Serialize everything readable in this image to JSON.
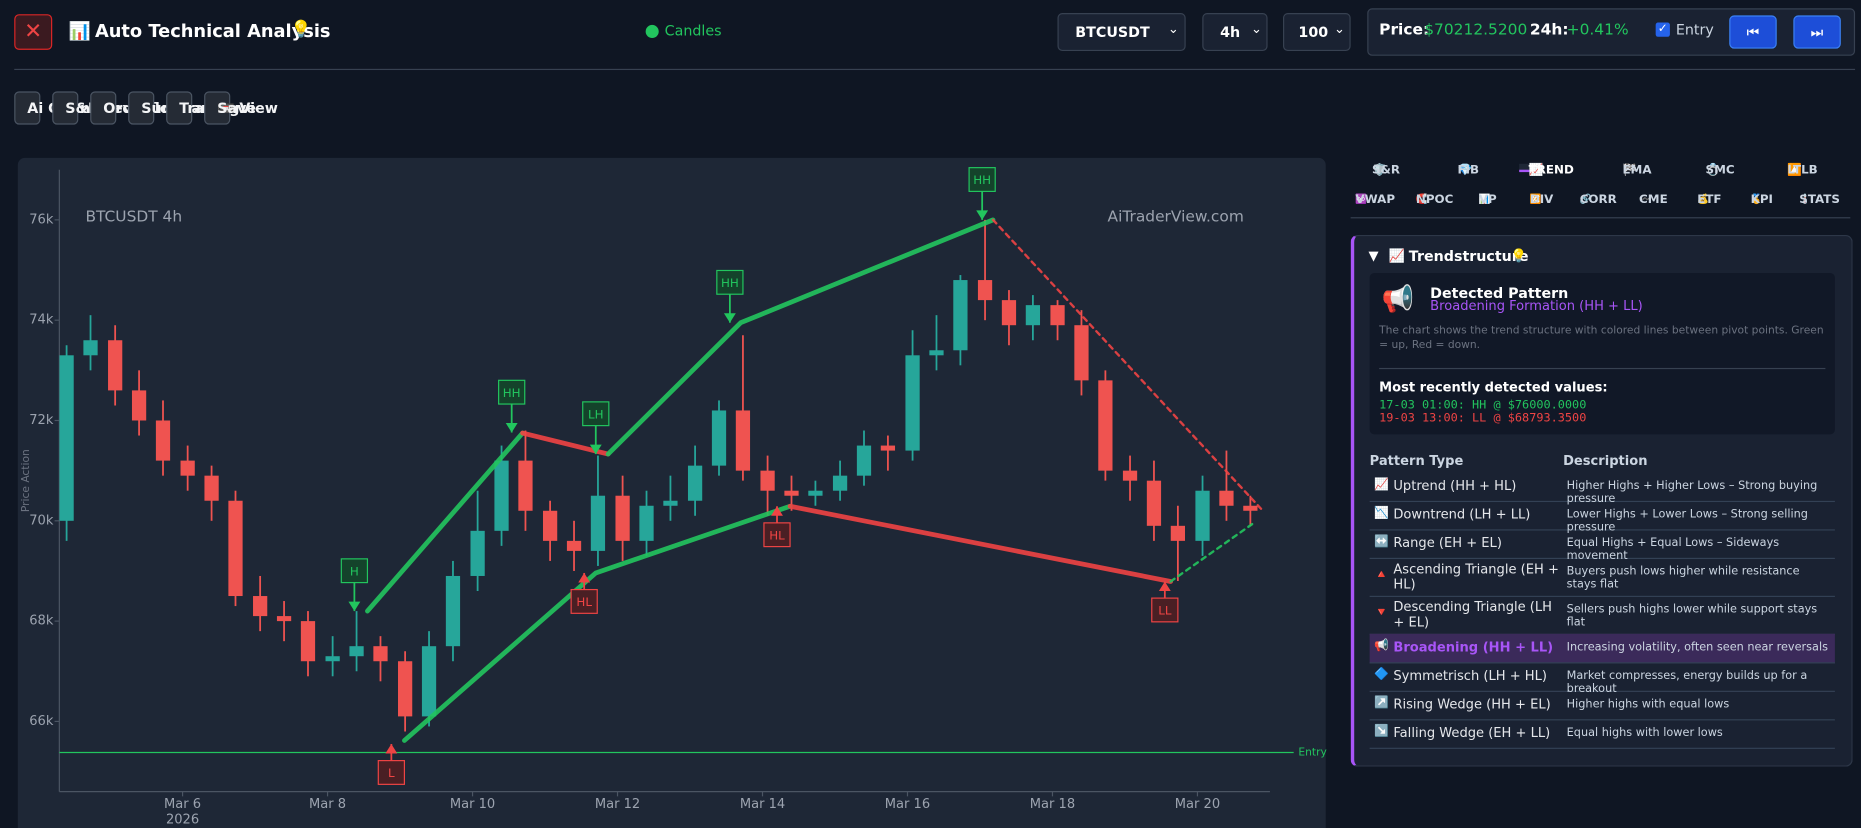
{
  "header": {
    "title_icon": "📊",
    "title": "Auto Technical Analysis",
    "title_hint": "💡",
    "close": "✕",
    "status": "Candles",
    "symbol": "BTCUSDT",
    "interval": "4h",
    "limit": "100",
    "price_label": "Price:",
    "price": "$70212.5200",
    "change_label": "24h:",
    "change": "+0.41%",
    "entry_label": "Entry",
    "prev": "⏮",
    "next": "⏭"
  },
  "toolbar": [
    {
      "label": "Ai Quant"
    },
    {
      "label": "S&R Levels"
    },
    {
      "label": "Orderflow"
    },
    {
      "label": "Summary"
    },
    {
      "label": "TradingView"
    },
    {
      "icon": "📼",
      "label": "Save"
    }
  ],
  "chart_data": {
    "type": "candlestick",
    "title": "BTCUSDT 4h",
    "watermark": "AiTraderView.com",
    "y_label": "Price Action",
    "x": [
      4.4,
      4.73,
      5.07,
      5.4,
      5.73,
      6.07,
      6.4,
      6.73,
      7.07,
      7.4,
      7.73,
      8.07,
      8.4,
      8.73,
      9.07,
      9.4,
      9.73,
      10.07,
      10.4,
      10.73,
      11.07,
      11.4,
      11.73,
      12.07,
      12.4,
      12.73,
      13.07,
      13.4,
      13.73,
      14.07,
      14.4,
      14.73,
      15.07,
      15.4,
      15.73,
      16.07,
      16.4,
      16.73,
      17.07,
      17.4,
      17.73,
      18.07,
      18.4,
      18.73,
      19.07,
      19.4,
      19.73,
      20.07,
      20.4,
      20.73
    ],
    "open": [
      70000,
      73300,
      73600,
      72600,
      72000,
      71200,
      70900,
      70400,
      68500,
      68100,
      68000,
      67200,
      67300,
      67500,
      67200,
      66100,
      67500,
      68900,
      69800,
      71200,
      70200,
      69600,
      69400,
      70500,
      69600,
      70300,
      70400,
      71100,
      72200,
      71000,
      70600,
      70500,
      70600,
      70900,
      71500,
      71400,
      73300,
      73400,
      74800,
      74400,
      73900,
      74300,
      73900,
      72800,
      71000,
      70800,
      69900,
      69600,
      70600,
      70300
    ],
    "high": [
      73500,
      74100,
      73900,
      73000,
      72400,
      71500,
      71100,
      70600,
      68900,
      68400,
      68200,
      67700,
      68200,
      67700,
      67400,
      67800,
      69200,
      70600,
      71500,
      71800,
      70400,
      70000,
      71300,
      70900,
      70600,
      70900,
      71500,
      72400,
      73700,
      71300,
      70900,
      70800,
      71200,
      71800,
      71700,
      73800,
      74100,
      74900,
      76000,
      74600,
      74500,
      74400,
      74200,
      73000,
      71300,
      71200,
      70300,
      70900,
      71400,
      70500
    ],
    "low": [
      69600,
      73000,
      72300,
      71700,
      70900,
      70600,
      70000,
      68300,
      67800,
      67600,
      66900,
      66900,
      67000,
      66800,
      65800,
      65900,
      67200,
      68600,
      69500,
      69800,
      69200,
      69000,
      69100,
      69200,
      69300,
      70000,
      70100,
      70900,
      70800,
      70100,
      70200,
      70300,
      70400,
      70700,
      71000,
      71200,
      73000,
      73100,
      74000,
      73500,
      73600,
      73600,
      72500,
      70800,
      70400,
      69600,
      68800,
      69300,
      70000,
      69900
    ],
    "close": [
      73300,
      73600,
      72600,
      72000,
      71200,
      70900,
      70400,
      68500,
      68100,
      68000,
      67200,
      67300,
      67500,
      67200,
      66100,
      67500,
      68900,
      69800,
      71200,
      70200,
      69600,
      69400,
      70500,
      69600,
      70300,
      70400,
      71100,
      72200,
      71000,
      70600,
      70500,
      70600,
      70900,
      71500,
      71400,
      73300,
      73400,
      74800,
      74400,
      73900,
      74300,
      73900,
      72800,
      71000,
      70800,
      69900,
      69600,
      70600,
      70300,
      70200
    ],
    "up_color": "#26a69a",
    "down_color": "#ef5350",
    "xlim": [
      4.3,
      21.0
    ],
    "xticks": [
      {
        "value": 6,
        "label": "Mar 6"
      },
      {
        "value": 8,
        "label": "Mar 8"
      },
      {
        "value": 10,
        "label": "Mar 10"
      },
      {
        "value": 12,
        "label": "Mar 12"
      },
      {
        "value": 14,
        "label": "Mar 14"
      },
      {
        "value": 16,
        "label": "Mar 16"
      },
      {
        "value": 18,
        "label": "Mar 18"
      },
      {
        "value": 20,
        "label": "Mar 20"
      }
    ],
    "x_year": "2026",
    "ylim": [
      64600,
      77000
    ],
    "yticks": [
      {
        "value": 66000,
        "label": "66k"
      },
      {
        "value": 68000,
        "label": "68k"
      },
      {
        "value": 70000,
        "label": "70k"
      },
      {
        "value": 72000,
        "label": "72k"
      },
      {
        "value": 74000,
        "label": "74k"
      },
      {
        "value": 76000,
        "label": "76k"
      }
    ],
    "entry": {
      "label": "Entry",
      "value": 65380,
      "color": "#22c55e"
    },
    "pivots": [
      {
        "label": "H",
        "x": 8.37,
        "price": 68200,
        "side": "high"
      },
      {
        "label": "HH",
        "x": 10.54,
        "price": 71760,
        "side": "high"
      },
      {
        "label": "LH",
        "x": 11.7,
        "price": 71330,
        "side": "high"
      },
      {
        "label": "HH",
        "x": 13.55,
        "price": 73950,
        "side": "high"
      },
      {
        "label": "HH",
        "x": 17.03,
        "price": 76000,
        "side": "high"
      },
      {
        "label": "L",
        "x": 8.88,
        "price": 65550,
        "side": "low"
      },
      {
        "label": "HL",
        "x": 11.54,
        "price": 68960,
        "side": "low"
      },
      {
        "label": "HL",
        "x": 14.2,
        "price": 70290,
        "side": "low"
      },
      {
        "label": "LL",
        "x": 19.55,
        "price": 68790,
        "side": "low"
      }
    ],
    "trend_lines": [
      {
        "color": "#22c55e",
        "dashed": false,
        "x": [
          8.55,
          10.69
        ],
        "price": [
          68200,
          71750
        ]
      },
      {
        "color": "#ef4444",
        "dashed": false,
        "x": [
          10.69,
          11.87
        ],
        "price": [
          71750,
          71330
        ]
      },
      {
        "color": "#22c55e",
        "dashed": false,
        "x": [
          11.87,
          13.7,
          17.18
        ],
        "price": [
          71330,
          73950,
          76000
        ]
      },
      {
        "color": "#22c55e",
        "dashed": false,
        "x": [
          9.06,
          11.7,
          14.38
        ],
        "price": [
          65620,
          68960,
          70290
        ]
      },
      {
        "color": "#ef4444",
        "dashed": false,
        "x": [
          14.38,
          19.63
        ],
        "price": [
          70290,
          68790
        ]
      },
      {
        "color": "#ef4444",
        "dashed": true,
        "x": [
          17.18,
          20.89
        ],
        "price": [
          76000,
          70220
        ]
      },
      {
        "color": "#22c55e",
        "dashed": true,
        "x": [
          19.63,
          20.8
        ],
        "price": [
          68790,
          69980
        ]
      }
    ]
  },
  "panel": {
    "tabs": [
      {
        "icon": "🛡️",
        "label": "S&R"
      },
      {
        "icon": "💎",
        "label": "FIB"
      },
      {
        "icon": "📈",
        "label": "TREND",
        "active": true
      },
      {
        "icon": "🏁",
        "label": "EMA"
      },
      {
        "icon": "💍",
        "label": "SMC"
      },
      {
        "icon": "🔼",
        "label": "LTLB"
      }
    ],
    "tabs2": [
      {
        "icon": "♾️",
        "label": "VWAP"
      },
      {
        "icon": "🧲",
        "label": "NPOC"
      },
      {
        "icon": "📊",
        "label": "VP"
      },
      {
        "icon": "🔀",
        "label": "DIV"
      },
      {
        "icon": "🔗",
        "label": "CORR"
      },
      {
        "icon": "〰️",
        "label": "CME"
      },
      {
        "icon": "💰",
        "label": "ETF"
      },
      {
        "icon": "🏅",
        "label": "KPI"
      },
      {
        "icon": "🌡️",
        "label": "STATS"
      }
    ],
    "section": {
      "toggle": "▼",
      "icon": "📈",
      "title": "Trendstructure",
      "hint": "💡"
    },
    "detected": {
      "icon": "📢",
      "title": "Detected Pattern",
      "pattern": "Broadening Formation (HH + LL)",
      "text": "The chart shows the trend structure with colored lines between pivot points. Green = up, Red = down.",
      "recent_title": "Most recently detected values:",
      "recent": [
        "17-03 01:00: HH @ $76000.0000",
        "19-03 13:00: LL @ $68793.3500"
      ]
    },
    "table": {
      "headers": [
        "Pattern Type",
        "Description"
      ],
      "rows": [
        {
          "icon": "📈",
          "name": "Uptrend (HH + HL)",
          "desc": "Higher Highs + Higher Lows – Strong buying pressure"
        },
        {
          "icon": "📉",
          "name": "Downtrend (LH + LL)",
          "desc": "Lower Highs + Lower Lows – Strong selling pressure"
        },
        {
          "icon": "↔️",
          "name": "Range (EH + EL)",
          "desc": "Equal Highs + Equal Lows – Sideways movement"
        },
        {
          "icon": "🔺",
          "name": "Ascending Triangle (EH + HL)",
          "desc": "Buyers push lows higher while resistance stays flat"
        },
        {
          "icon": "🔻",
          "name": "Descending Triangle (LH + EL)",
          "desc": "Sellers push highs lower while support stays flat"
        },
        {
          "icon": "📢",
          "name": "Broadening (HH + LL)",
          "desc": "Increasing volatility, often seen near reversals",
          "active": true
        },
        {
          "icon": "🔷",
          "name": "Symmetrisch (LH + HL)",
          "desc": "Market compresses, energy builds up for a breakout"
        },
        {
          "icon": "↗️",
          "name": "Rising Wedge (HH + EL)",
          "desc": "Higher highs with equal lows"
        },
        {
          "icon": "↘️",
          "name": "Falling Wedge (EH + LL)",
          "desc": "Equal highs with lower lows"
        }
      ]
    }
  }
}
